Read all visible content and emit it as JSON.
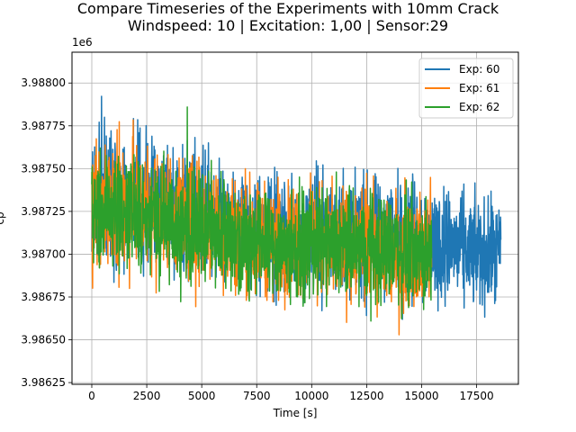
{
  "chart_data": {
    "type": "line",
    "title": "Compare Timeseries of the Experiments with 10mm Crack",
    "subtitle": "Windspeed: 10 | Excitation: 1,00 | Sensor:29",
    "xlabel": "Time [s]",
    "ylabel": "cp",
    "offset_label": "1e6",
    "xlim": [
      -900,
      19400
    ],
    "ylim": [
      3.98624,
      3.98818
    ],
    "xticks": [
      0,
      2500,
      5000,
      7500,
      10000,
      12500,
      15000,
      17500
    ],
    "xtick_labels": [
      "0",
      "2500",
      "5000",
      "7500",
      "10000",
      "12500",
      "15000",
      "17500"
    ],
    "yticks": [
      3.98625,
      3.9865,
      3.98675,
      3.987,
      3.98725,
      3.9875,
      3.98775,
      3.988
    ],
    "ytick_labels": [
      "3.98625",
      "3.98650",
      "3.98675",
      "3.98700",
      "3.98725",
      "3.98750",
      "3.98775",
      "3.98800"
    ],
    "grid": true,
    "legend_position": "top-right",
    "series": [
      {
        "name": "Exp: 60",
        "color": "#1f77b4",
        "x_end": 18600,
        "envelope": {
          "x": [
            0,
            1000,
            2000,
            3000,
            4000,
            5000,
            6000,
            7000,
            8000,
            9000,
            10000,
            11000,
            12000,
            13000,
            14000,
            15000,
            16000,
            17000,
            18000,
            18600
          ],
          "upper": [
            3.98795,
            3.98795,
            3.98795,
            3.98785,
            3.98785,
            3.9878,
            3.9877,
            3.98765,
            3.9876,
            3.9876,
            3.98765,
            3.98765,
            3.9876,
            3.9876,
            3.98765,
            3.9876,
            3.98755,
            3.9875,
            3.98745,
            3.98745
          ],
          "lower": [
            3.9868,
            3.9867,
            3.9867,
            3.98672,
            3.9867,
            3.9867,
            3.98668,
            3.98665,
            3.98662,
            3.9866,
            3.9866,
            3.9866,
            3.9866,
            3.98658,
            3.98655,
            3.98655,
            3.98655,
            3.98655,
            3.98653,
            3.98655
          ]
        }
      },
      {
        "name": "Exp: 61",
        "color": "#ff7f0e",
        "x_end": 15450,
        "envelope": {
          "x": [
            0,
            1000,
            2000,
            3000,
            4000,
            5000,
            6000,
            7000,
            8000,
            9000,
            10000,
            11000,
            12000,
            13000,
            14000,
            15000,
            15450
          ],
          "upper": [
            3.98785,
            3.98785,
            3.98785,
            3.9878,
            3.98775,
            3.9877,
            3.98765,
            3.9876,
            3.98755,
            3.98755,
            3.98755,
            3.98755,
            3.9875,
            3.9875,
            3.98755,
            3.9875,
            3.9875
          ],
          "lower": [
            3.98675,
            3.9867,
            3.98672,
            3.98672,
            3.9867,
            3.98668,
            3.98665,
            3.98662,
            3.98662,
            3.9866,
            3.9866,
            3.98658,
            3.98655,
            3.98655,
            3.9865,
            3.98655,
            3.98655
          ]
        }
      },
      {
        "name": "Exp: 62",
        "color": "#2ca02c",
        "x_end": 15450,
        "envelope": {
          "x": [
            0,
            1000,
            2000,
            3000,
            4000,
            5000,
            6000,
            7000,
            8000,
            9000,
            10000,
            11000,
            12000,
            13000,
            14000,
            15000,
            15450
          ],
          "upper": [
            3.98775,
            3.98775,
            3.98775,
            3.9877,
            3.98765,
            3.98765,
            3.9876,
            3.98755,
            3.9875,
            3.9875,
            3.9875,
            3.9875,
            3.9875,
            3.98752,
            3.98752,
            3.98745,
            3.98745
          ],
          "lower": [
            3.98675,
            3.98675,
            3.98672,
            3.9867,
            3.98668,
            3.98665,
            3.98665,
            3.98662,
            3.9866,
            3.98658,
            3.9866,
            3.98658,
            3.98658,
            3.98655,
            3.98655,
            3.98658,
            3.98658
          ]
        }
      }
    ]
  }
}
